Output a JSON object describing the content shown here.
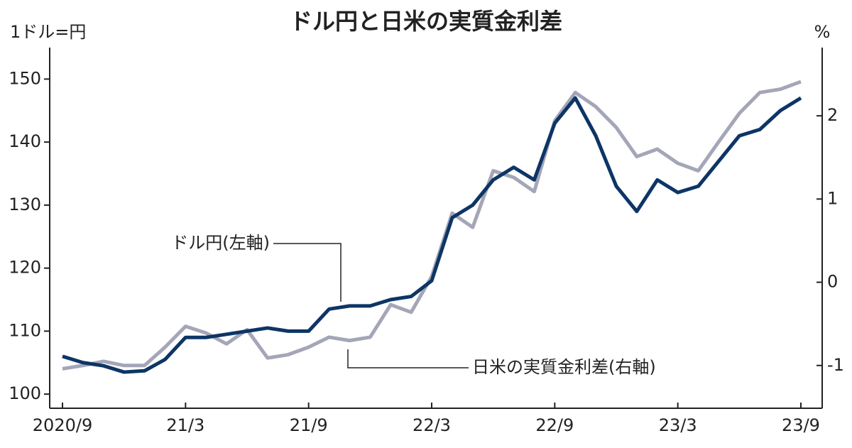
{
  "chart_data": {
    "type": "line",
    "title": "ドル円と日米の実質金利差",
    "ylabel": "1ドル=円",
    "y2label": "%",
    "x": [
      "2020-09",
      "2020-10",
      "2020-11",
      "2020-12",
      "2021-01",
      "2021-02",
      "2021-03",
      "2021-04",
      "2021-05",
      "2021-06",
      "2021-07",
      "2021-08",
      "2021-09",
      "2021-10",
      "2021-11",
      "2021-12",
      "2022-01",
      "2022-02",
      "2022-03",
      "2022-04",
      "2022-05",
      "2022-06",
      "2022-07",
      "2022-08",
      "2022-09",
      "2022-10",
      "2022-11",
      "2022-12",
      "2023-01",
      "2023-02",
      "2023-03",
      "2023-04",
      "2023-05",
      "2023-06",
      "2023-07",
      "2023-08",
      "2023-09"
    ],
    "xticks": [
      {
        "value": "2020-09",
        "label": "2020/9"
      },
      {
        "value": "2021-03",
        "label": "21/3"
      },
      {
        "value": "2021-09",
        "label": "21/9"
      },
      {
        "value": "2022-03",
        "label": "22/3"
      },
      {
        "value": "2022-09",
        "label": "22/9"
      },
      {
        "value": "2023-03",
        "label": "23/3"
      },
      {
        "value": "2023-09",
        "label": "23/9"
      }
    ],
    "series": [
      {
        "name": "日米の実質金利差(右軸)",
        "color": "#a4a6b8",
        "axis": "y2",
        "values": [
          -1.04,
          -1.0,
          -0.95,
          -1.0,
          -1.0,
          -0.78,
          -0.53,
          -0.61,
          -0.74,
          -0.57,
          -0.91,
          -0.87,
          -0.78,
          -0.66,
          -0.7,
          -0.66,
          -0.27,
          -0.36,
          0.07,
          0.83,
          0.66,
          1.34,
          1.26,
          1.09,
          1.94,
          2.28,
          2.11,
          1.86,
          1.51,
          1.6,
          1.43,
          1.34,
          1.69,
          2.03,
          2.28,
          2.32,
          2.41
        ]
      },
      {
        "name": "ドル円(左軸)",
        "color": "#0d3566",
        "values": [
          106,
          105,
          104.5,
          103.5,
          103.7,
          105.5,
          109,
          109,
          109.5,
          110,
          110.5,
          110,
          110,
          113.5,
          114,
          114,
          115,
          115.5,
          118,
          128,
          130,
          134,
          136,
          134,
          143,
          147,
          141,
          133,
          129,
          134,
          132,
          133,
          137,
          141,
          142,
          145,
          147
        ]
      }
    ],
    "ylim": [
      99,
      155
    ],
    "yticks": [
      100,
      110,
      120,
      130,
      140,
      150
    ],
    "y2lim": [
      -1.42,
      2.82
    ],
    "y2ticks": [
      -1,
      0,
      1,
      2
    ]
  }
}
